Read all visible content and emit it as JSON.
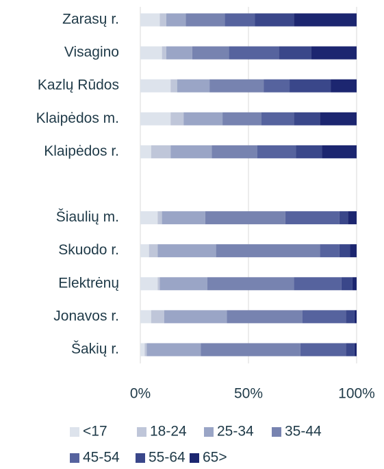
{
  "chart_data": {
    "type": "stacked-barh",
    "categories": [
      "Zarasų r.",
      "Visagino",
      "Kazlų Rūdos",
      "Klaipėdos m.",
      "Klaipėdos r.",
      null,
      "Šiaulių m.",
      "Skuodo r.",
      "Elektrėnų",
      "Jonavos r.",
      "Šakių r."
    ],
    "series": [
      {
        "name": "<17",
        "color": "#dde3ec",
        "values": [
          9,
          10,
          14,
          14,
          5,
          null,
          8,
          4,
          8,
          5,
          2
        ]
      },
      {
        "name": "18-24",
        "color": "#bfc6d9",
        "values": [
          3,
          2,
          3,
          6,
          9,
          null,
          2,
          4,
          1,
          6,
          1
        ]
      },
      {
        "name": "25-34",
        "color": "#9aa5c6",
        "values": [
          9,
          12,
          15,
          18,
          19,
          null,
          20,
          27,
          22,
          29,
          25
        ]
      },
      {
        "name": "35-44",
        "color": "#7783b0",
        "values": [
          18,
          17,
          25,
          18,
          21,
          null,
          37,
          48,
          40,
          35,
          46
        ]
      },
      {
        "name": "45-54",
        "color": "#56639e",
        "values": [
          14,
          23,
          12,
          15,
          18,
          null,
          25,
          9,
          22,
          20,
          21
        ]
      },
      {
        "name": "55-64",
        "color": "#3a478a",
        "values": [
          18,
          15,
          19,
          12,
          12,
          null,
          4,
          5,
          5,
          4,
          4
        ]
      },
      {
        "name": "65>",
        "color": "#1c2670",
        "values": [
          29,
          21,
          12,
          17,
          16,
          null,
          4,
          3,
          2,
          1,
          1
        ]
      }
    ],
    "xlim": [
      0,
      100
    ],
    "xticks": [
      {
        "value": 0,
        "label": "0%"
      },
      {
        "value": 50,
        "label": "50%"
      },
      {
        "value": 100,
        "label": "100%"
      }
    ],
    "grid": true
  }
}
